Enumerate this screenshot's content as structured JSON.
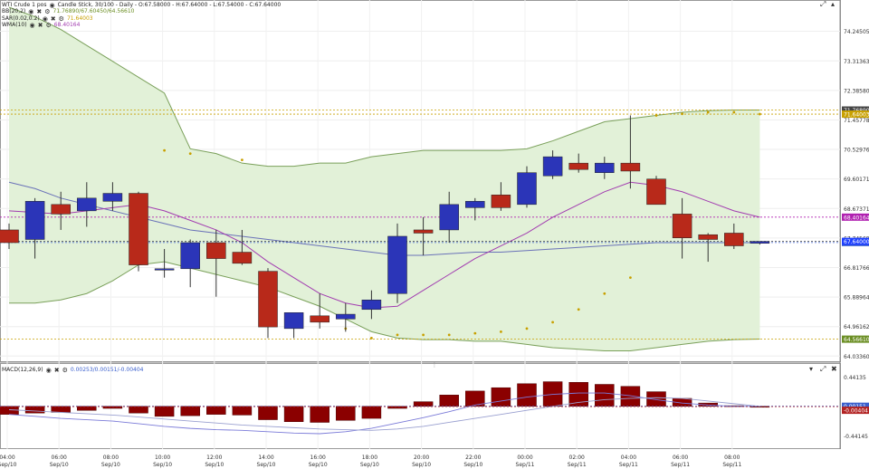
{
  "main_panel": {
    "instrument": "WTI Crude 1 pos",
    "chart_desc": "Candle Stick, 30/100 - Daily - O:67.58000 - H:67.64000 - L:67.54000 - C:67.64000",
    "indicators": [
      {
        "name": "BB(20,2)",
        "values": "71.76890/67.60450/64.56610"
      },
      {
        "name": "SAR(0.02,0.2)",
        "values": "71.64003"
      },
      {
        "name": "WMA(10)",
        "values": "68.40164"
      }
    ],
    "y_ticks": [
      "74.24505",
      "73.31363",
      "72.38580",
      "71.45778",
      "70.52976",
      "69.60171",
      "68.67371",
      "67.74569",
      "66.81766",
      "65.88964",
      "64.96162",
      "64.03360"
    ],
    "price_tags": [
      {
        "text": "71.76890",
        "value": 71.7689,
        "color": "#444444",
        "line": "#c8a000"
      },
      {
        "text": "71.64003",
        "value": 71.64003,
        "color": "#c8a000",
        "line": "#c8a000"
      },
      {
        "text": "68.40164",
        "value": 68.40164,
        "color": "#b020b0",
        "line": "#b020b0"
      },
      {
        "text": "67.60450",
        "value": 67.6045,
        "color": "#3a5fcd",
        "line": "#3a5fcd"
      },
      {
        "text": "67.64000",
        "value": 67.64,
        "color": "#1e40ff",
        "line": "#444444"
      },
      {
        "text": "64.56610",
        "value": 64.5661,
        "color": "#6b8e23",
        "line": "#c8a000"
      }
    ]
  },
  "macd_panel": {
    "label": "MACD(12,26,9)",
    "values": "0.00253/0.00151/-0.00404",
    "y_ticks": [
      "0.44135",
      "-0.44145"
    ],
    "tags": [
      {
        "text": "0.00151",
        "color": "#3a5fcd"
      },
      {
        "text": "-0.00404",
        "color": "#b22222"
      }
    ]
  },
  "x_axis": [
    {
      "time": "04:00",
      "date": "Sep/10"
    },
    {
      "time": "06:00",
      "date": "Sep/10"
    },
    {
      "time": "08:00",
      "date": "Sep/10"
    },
    {
      "time": "10:00",
      "date": "Sep/10"
    },
    {
      "time": "12:00",
      "date": "Sep/10"
    },
    {
      "time": "14:00",
      "date": "Sep/10"
    },
    {
      "time": "16:00",
      "date": "Sep/10"
    },
    {
      "time": "18:00",
      "date": "Sep/10"
    },
    {
      "time": "20:00",
      "date": "Sep/10"
    },
    {
      "time": "22:00",
      "date": "Sep/10"
    },
    {
      "time": "00:00",
      "date": "Sep/11"
    },
    {
      "time": "02:00",
      "date": "Sep/11"
    },
    {
      "time": "04:00",
      "date": "Sep/11"
    },
    {
      "time": "06:00",
      "date": "Sep/11"
    },
    {
      "time": "08:00",
      "date": "Sep/11"
    }
  ],
  "colors": {
    "up": "#2b35b8",
    "down": "#b8291a",
    "band_fill": "#e2f1d8",
    "band_line": "#7aa05a",
    "wma": "#a23cb0",
    "mid": "#6a72b8",
    "sar": "#c8a000",
    "macd_bar": "#8b0000",
    "macd_line": "#7a7ad8"
  },
  "icons": [
    "visibility-eye-icon",
    "remove-x-icon",
    "settings-gear-icon",
    "expand-icon",
    "maximize-icon",
    "close-icon",
    "panel-splitter-icon"
  ],
  "chart_data": {
    "type": "candlestick",
    "ylim": [
      63.9,
      75.0
    ],
    "candles": [
      {
        "o": 68.0,
        "h": 68.2,
        "l": 67.4,
        "c": 67.6
      },
      {
        "o": 67.7,
        "h": 69.0,
        "l": 67.1,
        "c": 68.9
      },
      {
        "o": 68.8,
        "h": 69.2,
        "l": 68.0,
        "c": 68.5
      },
      {
        "o": 68.6,
        "h": 69.5,
        "l": 68.1,
        "c": 69.0
      },
      {
        "o": 68.9,
        "h": 69.5,
        "l": 68.6,
        "c": 69.15
      },
      {
        "o": 69.15,
        "h": 69.2,
        "l": 66.7,
        "c": 66.9
      },
      {
        "o": 66.75,
        "h": 67.4,
        "l": 66.5,
        "c": 66.78
      },
      {
        "o": 66.78,
        "h": 67.7,
        "l": 66.2,
        "c": 67.6
      },
      {
        "o": 67.6,
        "h": 68.0,
        "l": 65.9,
        "c": 67.1
      },
      {
        "o": 67.3,
        "h": 68.0,
        "l": 66.9,
        "c": 66.95
      },
      {
        "o": 66.7,
        "h": 66.8,
        "l": 64.6,
        "c": 64.95
      },
      {
        "o": 64.9,
        "h": 65.3,
        "l": 64.6,
        "c": 65.4
      },
      {
        "o": 65.3,
        "h": 66.0,
        "l": 64.9,
        "c": 65.1
      },
      {
        "o": 65.2,
        "h": 65.7,
        "l": 64.8,
        "c": 65.35
      },
      {
        "o": 65.5,
        "h": 66.1,
        "l": 65.2,
        "c": 65.8
      },
      {
        "o": 66.0,
        "h": 68.2,
        "l": 65.7,
        "c": 67.8
      },
      {
        "o": 68.0,
        "h": 68.4,
        "l": 67.2,
        "c": 67.9
      },
      {
        "o": 68.0,
        "h": 69.2,
        "l": 67.6,
        "c": 68.8
      },
      {
        "o": 68.7,
        "h": 69.0,
        "l": 68.3,
        "c": 68.9
      },
      {
        "o": 69.1,
        "h": 69.5,
        "l": 68.6,
        "c": 68.7
      },
      {
        "o": 68.8,
        "h": 70.0,
        "l": 68.7,
        "c": 69.8
      },
      {
        "o": 69.7,
        "h": 70.5,
        "l": 69.6,
        "c": 70.3
      },
      {
        "o": 70.1,
        "h": 70.4,
        "l": 69.8,
        "c": 69.9
      },
      {
        "o": 69.8,
        "h": 70.3,
        "l": 69.6,
        "c": 70.1
      },
      {
        "o": 70.1,
        "h": 71.6,
        "l": 69.3,
        "c": 69.85
      },
      {
        "o": 69.6,
        "h": 69.7,
        "l": 68.8,
        "c": 68.8
      },
      {
        "o": 68.5,
        "h": 69.0,
        "l": 67.1,
        "c": 67.75
      },
      {
        "o": 67.85,
        "h": 67.9,
        "l": 67.0,
        "c": 67.7
      },
      {
        "o": 67.9,
        "h": 68.2,
        "l": 67.4,
        "c": 67.5
      },
      {
        "o": 67.58,
        "h": 67.64,
        "l": 67.54,
        "c": 67.64
      }
    ],
    "bb_upper": [
      75.0,
      74.7,
      74.3,
      73.8,
      73.3,
      72.8,
      72.3,
      70.55,
      70.4,
      70.1,
      70.0,
      70.0,
      70.1,
      70.1,
      70.3,
      70.4,
      70.5,
      70.5,
      70.5,
      70.5,
      70.55,
      70.8,
      71.1,
      71.4,
      71.5,
      71.6,
      71.7,
      71.75,
      71.77,
      71.77
    ],
    "bb_lower": [
      65.7,
      65.7,
      65.8,
      66.0,
      66.4,
      66.9,
      67.0,
      66.8,
      66.6,
      66.4,
      66.2,
      65.9,
      65.6,
      65.2,
      64.8,
      64.6,
      64.55,
      64.55,
      64.5,
      64.5,
      64.4,
      64.3,
      64.25,
      64.2,
      64.2,
      64.3,
      64.4,
      64.5,
      64.55,
      64.57
    ],
    "bb_mid": [
      69.5,
      69.3,
      69.0,
      68.8,
      68.6,
      68.4,
      68.2,
      68.0,
      67.9,
      67.8,
      67.7,
      67.6,
      67.5,
      67.4,
      67.3,
      67.2,
      67.2,
      67.25,
      67.3,
      67.3,
      67.35,
      67.4,
      67.45,
      67.5,
      67.55,
      67.6,
      67.6,
      67.6,
      67.6,
      67.6
    ],
    "wma": [
      68.6,
      68.55,
      68.5,
      68.6,
      68.7,
      68.8,
      68.6,
      68.3,
      68.0,
      67.6,
      67.0,
      66.5,
      66.0,
      65.7,
      65.55,
      65.6,
      66.1,
      66.6,
      67.1,
      67.5,
      67.9,
      68.4,
      68.8,
      69.2,
      69.5,
      69.4,
      69.2,
      68.9,
      68.6,
      68.4
    ],
    "sar": [
      null,
      null,
      null,
      null,
      null,
      null,
      70.5,
      70.4,
      null,
      70.2,
      null,
      null,
      null,
      null,
      null,
      null,
      null,
      null,
      null,
      null,
      null,
      null,
      null,
      null,
      null,
      71.6,
      71.65,
      71.7,
      71.7,
      71.64
    ],
    "sar_below": [
      null,
      null,
      null,
      null,
      null,
      null,
      null,
      null,
      null,
      null,
      null,
      null,
      null,
      64.9,
      64.6,
      64.7,
      64.7,
      64.7,
      64.75,
      64.8,
      64.9,
      65.1,
      65.5,
      66.0,
      66.5,
      null,
      null,
      null,
      null,
      null
    ],
    "macd_hist": [
      -0.12,
      -0.1,
      -0.09,
      -0.06,
      -0.03,
      -0.1,
      -0.15,
      -0.14,
      -0.12,
      -0.13,
      -0.2,
      -0.23,
      -0.24,
      -0.21,
      -0.18,
      -0.03,
      0.07,
      0.17,
      0.23,
      0.28,
      0.34,
      0.37,
      0.36,
      0.33,
      0.3,
      0.22,
      0.12,
      0.05,
      0.01,
      -0.01
    ],
    "macd_signal": [
      -0.05,
      -0.07,
      -0.09,
      -0.11,
      -0.13,
      -0.16,
      -0.19,
      -0.22,
      -0.25,
      -0.28,
      -0.3,
      -0.32,
      -0.34,
      -0.35,
      -0.36,
      -0.34,
      -0.3,
      -0.24,
      -0.18,
      -0.12,
      -0.06,
      0.0,
      0.06,
      0.1,
      0.12,
      0.13,
      0.12,
      0.08,
      0.04,
      0.0
    ],
    "macd_line": [
      -0.12,
      -0.15,
      -0.18,
      -0.2,
      -0.22,
      -0.26,
      -0.3,
      -0.33,
      -0.35,
      -0.36,
      -0.38,
      -0.4,
      -0.41,
      -0.38,
      -0.33,
      -0.25,
      -0.17,
      -0.08,
      0.02,
      0.08,
      0.14,
      0.18,
      0.2,
      0.2,
      0.16,
      0.1,
      0.05,
      0.02,
      0.0,
      0.0
    ],
    "macd_ylim": [
      -0.6,
      0.5
    ]
  }
}
